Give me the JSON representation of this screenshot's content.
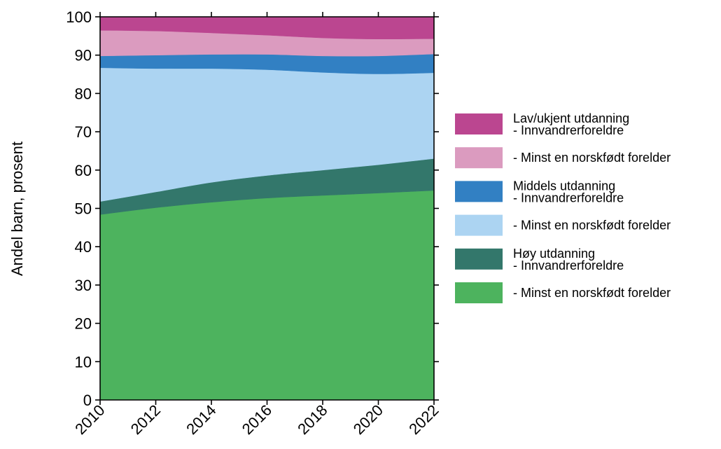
{
  "chart_data": {
    "type": "area",
    "stacked": true,
    "x": [
      2010,
      2012,
      2014,
      2016,
      2018,
      2020,
      2022
    ],
    "xticks": [
      2010,
      2012,
      2014,
      2016,
      2018,
      2020,
      2022
    ],
    "xlim": [
      2010,
      2022
    ],
    "ylim": [
      0,
      100
    ],
    "yticks": [
      0,
      10,
      20,
      30,
      40,
      50,
      60,
      70,
      80,
      90,
      100
    ],
    "ylabel": "Andel barn, prosent",
    "grid": false,
    "legend_position": "right",
    "series": [
      {
        "name": "- Minst en norskfødt forelder",
        "group": "",
        "color": "#4db35e",
        "values": [
          48.4,
          50.2,
          51.6,
          52.7,
          53.4,
          54.0,
          54.7
        ]
      },
      {
        "name": "- Innvandrerforeldre",
        "group": "Høy utdanning",
        "color": "#33776b",
        "values": [
          3.4,
          4.1,
          5.2,
          5.9,
          6.6,
          7.4,
          8.3
        ]
      },
      {
        "name": "- Minst en norskfødt forelder",
        "group": "",
        "color": "#acd4f2",
        "values": [
          34.9,
          32.2,
          29.7,
          27.6,
          25.5,
          23.7,
          22.4
        ]
      },
      {
        "name": "- Innvandrerforeldre",
        "group": "Middels utdanning",
        "color": "#3280c3",
        "values": [
          3.1,
          3.5,
          3.7,
          4.0,
          4.3,
          4.7,
          4.9
        ]
      },
      {
        "name": "- Minst en norskfødt forelder",
        "group": "",
        "color": "#db9bbf",
        "values": [
          6.7,
          6.3,
          5.6,
          5.0,
          4.7,
          4.4,
          4.0
        ]
      },
      {
        "name": "- Innvandrerforeldre",
        "group": "Lav/ukjent utdanning",
        "color": "#bb4690",
        "values": [
          3.5,
          3.7,
          4.2,
          4.8,
          5.5,
          5.8,
          5.7
        ]
      }
    ]
  }
}
